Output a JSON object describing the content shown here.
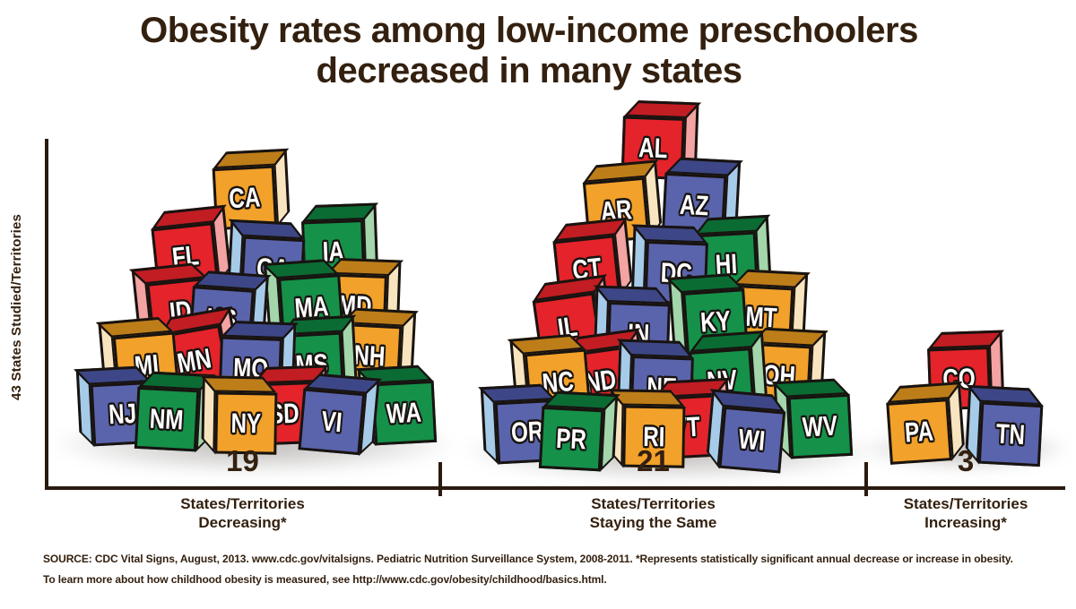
{
  "title": {
    "line1": "Obesity rates among low-income preschoolers",
    "line2": "decreased in many states"
  },
  "y_axis_label": "43 States Studied/Territories",
  "source": {
    "line1": "SOURCE: CDC Vital Signs, August, 2013. www.cdc.gov/vitalsigns. Pediatric Nutrition Surveillance System, 2008-2011. *Represents statistically significant annual decrease or increase in obesity.",
    "line2": "To learn more about how childhood obesity is measured, see http://www.cdc.gov/obesity/childhood/basics.html."
  },
  "colors": {
    "text_brown": "#33200f",
    "outline": "#181310",
    "red": {
      "front": "#e4232a",
      "top": "#c11d23",
      "side": "#f3a3a2"
    },
    "orange": {
      "front": "#f2a12a",
      "top": "#bd7d19",
      "side": "#f8e5bf"
    },
    "blue": {
      "front": "#5a64ac",
      "top": "#3d4787",
      "side": "#a6cbe9"
    },
    "green": {
      "front": "#15914a",
      "top": "#0a6c33",
      "side": "#a3d6aa"
    }
  },
  "piles": [
    {
      "key": "decreasing",
      "count": "19",
      "label_line1": "States/Territories",
      "label_line2": "Decreasing*",
      "blocks": [
        [
          "CA",
          "orange",
          237,
          168,
          -3,
          0
        ],
        [
          "FL",
          "red",
          170,
          233,
          -6,
          0
        ],
        [
          "GA",
          "blue",
          254,
          247,
          3,
          1
        ],
        [
          "IA",
          "green",
          336,
          228,
          -2,
          0
        ],
        [
          "ID",
          "red",
          150,
          296,
          -6,
          1
        ],
        [
          "KS",
          "blue",
          212,
          304,
          4,
          0
        ],
        [
          "MA",
          "green",
          296,
          291,
          -4,
          1
        ],
        [
          "MD",
          "orange",
          361,
          289,
          2,
          0
        ],
        [
          "MI",
          "orange",
          112,
          356,
          -5,
          1
        ],
        [
          "MN",
          "red",
          180,
          349,
          -10,
          0
        ],
        [
          "MO",
          "blue",
          244,
          359,
          2,
          0
        ],
        [
          "MS",
          "green",
          312,
          354,
          -3,
          0
        ],
        [
          "NH",
          "orange",
          377,
          345,
          3,
          0
        ],
        [
          "NJ",
          "blue",
          86,
          410,
          -3,
          1
        ],
        [
          "NM",
          "green",
          151,
          416,
          3,
          0
        ],
        [
          "NY",
          "orange",
          224,
          420,
          1,
          1
        ],
        [
          "SD",
          "red",
          281,
          409,
          -2,
          0
        ],
        [
          "VI",
          "blue",
          335,
          419,
          5,
          0
        ],
        [
          "WA",
          "green",
          400,
          409,
          -3,
          1
        ]
      ]
    },
    {
      "key": "staying_the_same",
      "count": "21",
      "label_line1": "States/Territories",
      "label_line2": "Staying the Same",
      "blocks": [
        [
          "AL",
          "red",
          693,
          113,
          2,
          0
        ],
        [
          "AR",
          "orange",
          651,
          182,
          -5,
          0
        ],
        [
          "AZ",
          "blue",
          739,
          177,
          3,
          0
        ],
        [
          "CT",
          "red",
          618,
          247,
          -6,
          0
        ],
        [
          "DC",
          "blue",
          704,
          252,
          2,
          1
        ],
        [
          "HI",
          "green",
          774,
          242,
          -3,
          0
        ],
        [
          "IL",
          "red",
          596,
          312,
          -8,
          0
        ],
        [
          "IN",
          "blue",
          662,
          320,
          2,
          1
        ],
        [
          "KY",
          "green",
          747,
          307,
          -4,
          1
        ],
        [
          "MT",
          "orange",
          814,
          302,
          3,
          0
        ],
        [
          "NC",
          "orange",
          571,
          375,
          -5,
          1
        ],
        [
          "ND",
          "red",
          633,
          372,
          -8,
          0
        ],
        [
          "NE",
          "blue",
          688,
          380,
          2,
          1
        ],
        [
          "NV",
          "green",
          769,
          372,
          -4,
          0
        ],
        [
          "OH",
          "orange",
          834,
          367,
          3,
          0
        ],
        [
          "OR",
          "blue",
          537,
          430,
          -3,
          1
        ],
        [
          "PR",
          "green",
          602,
          438,
          3,
          0
        ],
        [
          "RI",
          "orange",
          679,
          435,
          1,
          1
        ],
        [
          "VT",
          "red",
          729,
          424,
          -3,
          0
        ],
        [
          "WI",
          "blue",
          789,
          438,
          5,
          1
        ],
        [
          "WV",
          "green",
          864,
          424,
          -3,
          1
        ]
      ]
    },
    {
      "key": "increasing",
      "count": "3",
      "label_line1": "States/Territories",
      "label_line2": "Increasing*",
      "blocks": [
        [
          "CO",
          "red",
          1034,
          370,
          -2,
          0
        ],
        [
          "PA",
          "orange",
          989,
          429,
          -4,
          0
        ],
        [
          "TN",
          "blue",
          1077,
          432,
          3,
          1
        ]
      ]
    }
  ],
  "chart_data": {
    "type": "bar",
    "subtype": "pictograph-blocks",
    "title": "Obesity rates among low-income preschoolers decreased in many states",
    "ylabel": "43 States Studied/Territories",
    "categories": [
      "States/Territories Decreasing*",
      "States/Territories Staying the Same",
      "States/Territories Increasing*"
    ],
    "values": [
      19,
      21,
      3
    ],
    "groups": {
      "decreasing": [
        "CA",
        "FL",
        "GA",
        "IA",
        "ID",
        "KS",
        "MA",
        "MD",
        "MI",
        "MN",
        "MO",
        "MS",
        "NH",
        "NJ",
        "NM",
        "NY",
        "SD",
        "VI",
        "WA"
      ],
      "staying_the_same": [
        "AL",
        "AR",
        "AZ",
        "CT",
        "DC",
        "HI",
        "IL",
        "IN",
        "KY",
        "MT",
        "NC",
        "ND",
        "NE",
        "NV",
        "OH",
        "OR",
        "PR",
        "RI",
        "VT",
        "WI",
        "WV"
      ],
      "increasing": [
        "CO",
        "PA",
        "TN"
      ]
    },
    "footnote": "*Represents statistically significant annual decrease or increase in obesity.",
    "legend": "none",
    "grid": false
  }
}
